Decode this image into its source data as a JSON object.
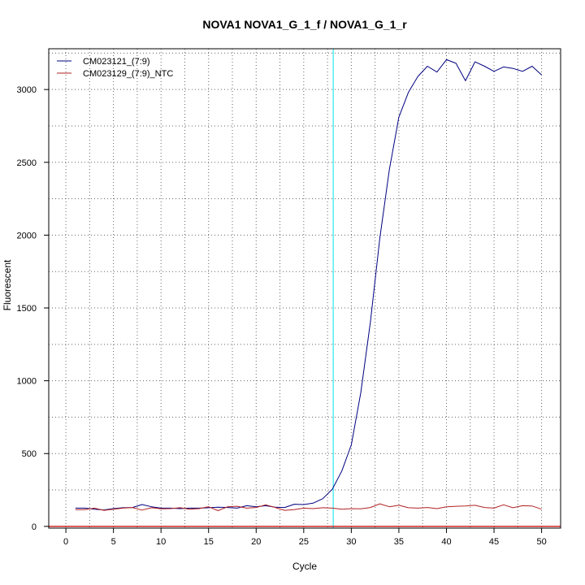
{
  "chart_data": {
    "type": "line",
    "title": "NOVA1  NOVA1_G_1_f / NOVA1_G_1_r",
    "xlabel": "Cycle",
    "ylabel": "Fluorescent",
    "xlim": [
      -1.8,
      52
    ],
    "ylim": [
      -12,
      3280
    ],
    "xticks": [
      0,
      5,
      10,
      15,
      20,
      25,
      30,
      35,
      40,
      45,
      50
    ],
    "yticks": [
      0,
      500,
      1000,
      1500,
      2000,
      2500,
      3000
    ],
    "grid": true,
    "legend": "top-left",
    "threshold_cycle": 28.1,
    "baseline": 0,
    "series": [
      {
        "name": "CM023121_(7:9)",
        "color": "#000080",
        "x": [
          1,
          2,
          3,
          4,
          5,
          6,
          7,
          8,
          9,
          10,
          11,
          12,
          13,
          14,
          15,
          16,
          17,
          18,
          19,
          20,
          21,
          22,
          23,
          24,
          25,
          26,
          27,
          28,
          29,
          30,
          31,
          32,
          33,
          34,
          35,
          36,
          37,
          38,
          39,
          40,
          41,
          42,
          43,
          44,
          45,
          46,
          47,
          48,
          49,
          50
        ],
        "values": [
          125,
          125,
          118,
          113,
          122,
          128,
          130,
          150,
          135,
          125,
          125,
          122,
          125,
          125,
          128,
          132,
          130,
          125,
          142,
          135,
          142,
          132,
          130,
          152,
          150,
          160,
          190,
          255,
          380,
          560,
          920,
          1400,
          1980,
          2450,
          2810,
          2980,
          3090,
          3160,
          3120,
          3205,
          3180,
          3060,
          3190,
          3160,
          3125,
          3155,
          3145,
          3125,
          3160,
          3100
        ]
      },
      {
        "name": "CM023129_(7:9)_NTC",
        "color": "#b22222",
        "x": [
          1,
          2,
          3,
          4,
          5,
          6,
          7,
          8,
          9,
          10,
          11,
          12,
          13,
          14,
          15,
          16,
          17,
          18,
          19,
          20,
          21,
          22,
          23,
          24,
          25,
          26,
          27,
          28,
          29,
          30,
          31,
          32,
          33,
          34,
          35,
          36,
          37,
          38,
          39,
          40,
          41,
          42,
          43,
          44,
          45,
          46,
          47,
          48,
          49,
          50
        ],
        "values": [
          115,
          115,
          125,
          110,
          118,
          125,
          130,
          112,
          128,
          120,
          122,
          128,
          118,
          122,
          135,
          108,
          135,
          138,
          125,
          130,
          148,
          130,
          110,
          115,
          125,
          122,
          128,
          125,
          118,
          122,
          120,
          130,
          155,
          135,
          145,
          128,
          125,
          130,
          122,
          135,
          138,
          140,
          145,
          130,
          125,
          148,
          128,
          142,
          140,
          118
        ]
      }
    ],
    "threshold_color": "#00e5ee",
    "baseline_color": "#cc0000"
  }
}
